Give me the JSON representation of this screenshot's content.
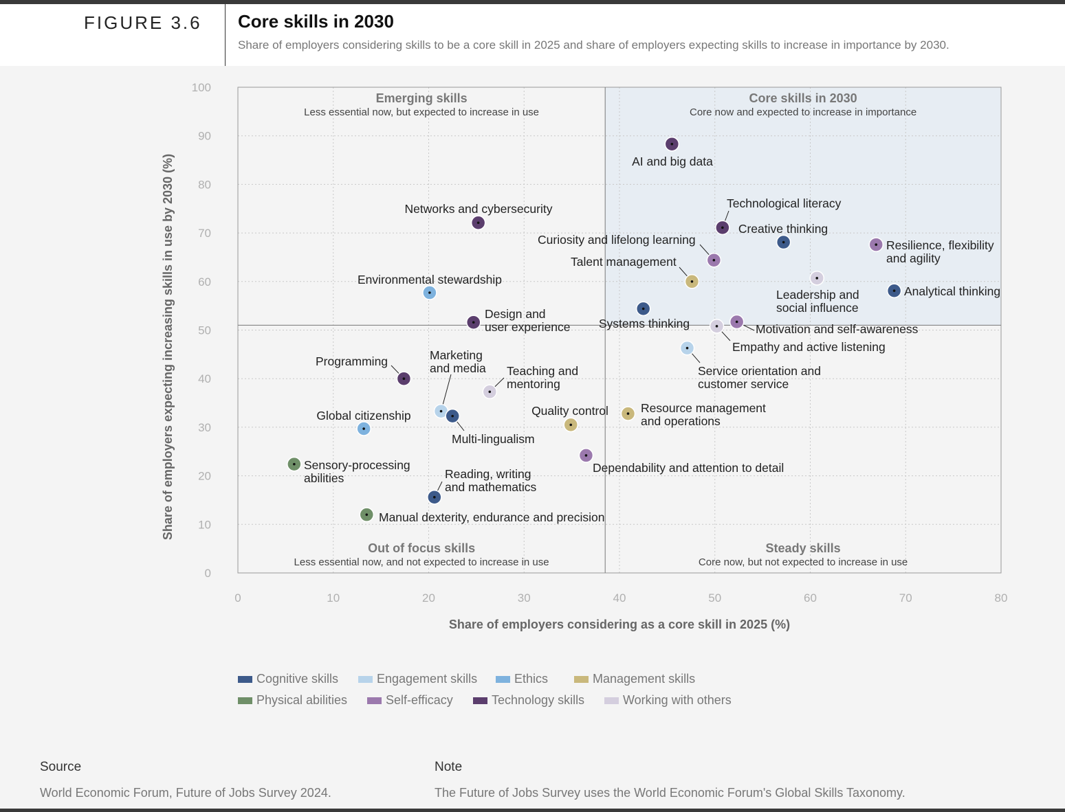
{
  "figure": {
    "label": "FIGURE 3.6",
    "title": "Core skills in 2030",
    "subtitle": "Share of employers considering skills to be a core skill in 2025 and share of employers expecting skills to increase in importance by 2030."
  },
  "chart_data": {
    "type": "scatter",
    "xlabel": "Share of employers considering as a core skill in 2025 (%)",
    "ylabel": "Share of employers expecting increasing skills in use by 2030 (%)",
    "xlim": [
      0,
      80
    ],
    "ylim": [
      0,
      100
    ],
    "xticks": [
      0,
      10,
      20,
      30,
      40,
      50,
      60,
      70,
      80
    ],
    "yticks": [
      0,
      10,
      20,
      30,
      40,
      50,
      60,
      70,
      80,
      90,
      100
    ],
    "grid": true,
    "quadrant_split": {
      "x": 38.5,
      "y": 51
    },
    "quadrants": [
      {
        "title": "Emerging skills",
        "subtitle": "Less essential now, but expected to increase in use"
      },
      {
        "title": "Core skills in 2030",
        "subtitle": "Core now and expected to increase in importance"
      },
      {
        "title": "Out of focus skills",
        "subtitle": "Less essential now, and not expected to increase in use"
      },
      {
        "title": "Steady skills",
        "subtitle": "Core now, but not expected to increase in use"
      }
    ],
    "categories": [
      {
        "name": "Cognitive skills",
        "color": "#3d5a8a"
      },
      {
        "name": "Engagement skills",
        "color": "#b7d3ea"
      },
      {
        "name": "Ethics",
        "color": "#7eb2de"
      },
      {
        "name": "Management skills",
        "color": "#c9b87c"
      },
      {
        "name": "Physical abilities",
        "color": "#6f8f68"
      },
      {
        "name": "Self-efficacy",
        "color": "#9b79ad"
      },
      {
        "name": "Technology skills",
        "color": "#5b3e6d"
      },
      {
        "name": "Working with others",
        "color": "#d4cede"
      }
    ],
    "points": [
      {
        "label": "AI and big data",
        "category": "Technology skills",
        "x": 45.5,
        "y": 88.3
      },
      {
        "label": "Technological literacy",
        "category": "Technology skills",
        "x": 50.8,
        "y": 71.1
      },
      {
        "label": "Networks and cybersecurity",
        "category": "Technology skills",
        "x": 25.2,
        "y": 72.1
      },
      {
        "label": "Creative thinking",
        "category": "Cognitive skills",
        "x": 57.2,
        "y": 68.1
      },
      {
        "label": "Resilience, flexibility and agility",
        "category": "Self-efficacy",
        "x": 66.9,
        "y": 67.6
      },
      {
        "label": "Curiosity and lifelong learning",
        "category": "Self-efficacy",
        "x": 49.9,
        "y": 64.4
      },
      {
        "label": "Talent management",
        "category": "Management skills",
        "x": 47.6,
        "y": 60.0
      },
      {
        "label": "Leadership and social influence",
        "category": "Working with others",
        "x": 60.7,
        "y": 60.7
      },
      {
        "label": "Analytical thinking",
        "category": "Cognitive skills",
        "x": 68.8,
        "y": 58.1
      },
      {
        "label": "Environmental stewardship",
        "category": "Ethics",
        "x": 20.1,
        "y": 57.7
      },
      {
        "label": "Systems thinking",
        "category": "Cognitive skills",
        "x": 42.5,
        "y": 54.4
      },
      {
        "label": "Design and user experience",
        "category": "Technology skills",
        "x": 24.7,
        "y": 51.6
      },
      {
        "label": "Motivation and self-awareness",
        "category": "Self-efficacy",
        "x": 52.3,
        "y": 51.7
      },
      {
        "label": "Empathy and active listening",
        "category": "Working with others",
        "x": 50.2,
        "y": 50.8
      },
      {
        "label": "Service orientation and customer service",
        "category": "Engagement skills",
        "x": 47.1,
        "y": 46.3
      },
      {
        "label": "Programming",
        "category": "Technology skills",
        "x": 17.4,
        "y": 40.0
      },
      {
        "label": "Marketing and media",
        "category": "Engagement skills",
        "x": 21.3,
        "y": 33.3
      },
      {
        "label": "Teaching and mentoring",
        "category": "Working with others",
        "x": 26.4,
        "y": 37.3
      },
      {
        "label": "Multi-lingualism",
        "category": "Cognitive skills",
        "x": 22.5,
        "y": 32.3
      },
      {
        "label": "Quality control",
        "category": "Management skills",
        "x": 34.9,
        "y": 30.5
      },
      {
        "label": "Resource management and operations",
        "category": "Management skills",
        "x": 40.9,
        "y": 32.8
      },
      {
        "label": "Global citizenship",
        "category": "Ethics",
        "x": 13.2,
        "y": 29.7
      },
      {
        "label": "Dependability and attention to detail",
        "category": "Self-efficacy",
        "x": 36.5,
        "y": 24.2
      },
      {
        "label": "Sensory-processing abilities",
        "category": "Physical abilities",
        "x": 5.9,
        "y": 22.4
      },
      {
        "label": "Reading, writing and mathematics",
        "category": "Cognitive skills",
        "x": 20.6,
        "y": 15.6
      },
      {
        "label": "Manual dexterity, endurance and precision",
        "category": "Physical abilities",
        "x": 13.5,
        "y": 12.0
      }
    ]
  },
  "legend": {
    "row1": [
      "Cognitive skills",
      "Engagement skills",
      "Ethics",
      "Management skills"
    ],
    "row2": [
      "Physical abilities",
      "Self-efficacy",
      "Technology skills",
      "Working with others"
    ]
  },
  "footer": {
    "source_label": "Source",
    "source_text": "World Economic Forum, Future of Jobs Survey 2024.",
    "note_label": "Note",
    "note_text": "The Future of Jobs Survey uses the World Economic Forum's Global Skills Taxonomy."
  }
}
